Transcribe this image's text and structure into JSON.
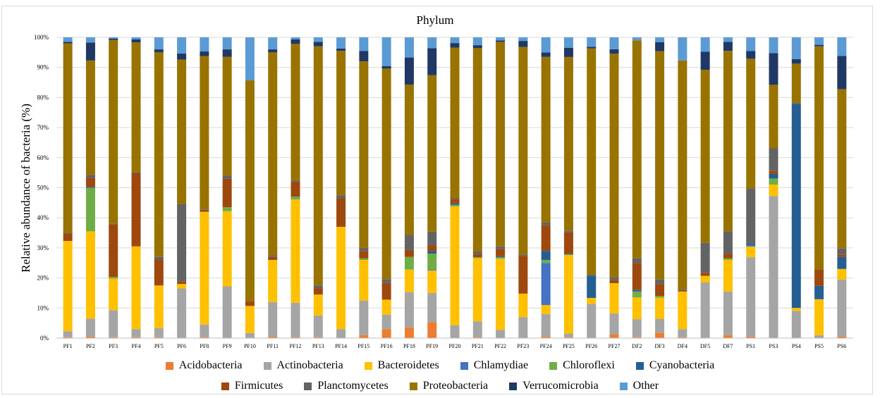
{
  "chart_data": {
    "type": "bar",
    "stacked": true,
    "percent": true,
    "title": "Phylum",
    "xlabel": "",
    "ylabel": "Relative abundance of bacteria (%)",
    "ylim": [
      0,
      100
    ],
    "yticks": [
      "0%",
      "10%",
      "20%",
      "30%",
      "40%",
      "50%",
      "60%",
      "70%",
      "80%",
      "90%",
      "100%"
    ],
    "grid": true,
    "legend_position": "bottom",
    "categories": [
      "PF1",
      "PF2",
      "PF3",
      "PF4",
      "PF5",
      "PF6",
      "PF8",
      "PF9",
      "PF10",
      "PF11",
      "PF12",
      "PF13",
      "PF14",
      "PF15",
      "PF16",
      "PF18",
      "PF19",
      "PF20",
      "PF21",
      "PF22",
      "PF23",
      "PF24",
      "PF25",
      "PF26",
      "PF27",
      "DF2",
      "DF3",
      "DF4",
      "DF5",
      "DF7",
      "PS1",
      "PS3",
      "PS4",
      "PS5",
      "PS6"
    ],
    "series": [
      {
        "name": "Acidobacteria",
        "color": "#ed7d31",
        "values": [
          0.3,
          0.5,
          0.3,
          0.3,
          0.3,
          0.0,
          0.3,
          0.0,
          0.0,
          0.5,
          0.3,
          0.3,
          0.0,
          1.0,
          3.0,
          3.5,
          5.3,
          0.0,
          0.3,
          0.0,
          0.0,
          0.5,
          0.3,
          0.0,
          1.3,
          0.3,
          1.8,
          0.3,
          0.0,
          1.0,
          0.5,
          0.0,
          0.0,
          0.0,
          0.5
        ]
      },
      {
        "name": "Actinobacteria",
        "color": "#a5a5a5",
        "values": [
          2.0,
          6.0,
          9.0,
          2.7,
          3.0,
          16.5,
          4.2,
          17.2,
          1.7,
          11.5,
          11.5,
          7.2,
          3.0,
          11.5,
          4.8,
          11.8,
          9.7,
          4.3,
          5.3,
          2.7,
          7.0,
          7.5,
          1.2,
          11.5,
          6.8,
          6.0,
          4.6,
          2.7,
          18.5,
          14.5,
          26.0,
          47.0,
          9.0,
          1.0,
          19.0
        ]
      },
      {
        "name": "Bacteroidetes",
        "color": "#ffc000",
        "values": [
          30.0,
          29.0,
          10.5,
          27.5,
          14.2,
          1.5,
          37.5,
          25.0,
          9.0,
          14.0,
          34.5,
          7.0,
          34.0,
          13.5,
          5.0,
          7.5,
          7.5,
          39.5,
          21.0,
          23.7,
          7.8,
          3.0,
          26.0,
          2.0,
          10.0,
          7.2,
          7.0,
          12.5,
          2.2,
          10.5,
          3.5,
          3.8,
          1.0,
          12.0,
          3.5
        ]
      },
      {
        "name": "Chlamydiae",
        "color": "#4472c4",
        "values": [
          0.0,
          0.0,
          0.0,
          0.0,
          0.0,
          0.0,
          0.0,
          0.0,
          0.0,
          0.0,
          0.0,
          0.0,
          0.0,
          0.0,
          0.0,
          0.0,
          0.3,
          0.0,
          0.0,
          0.0,
          0.0,
          14.0,
          0.0,
          0.0,
          0.0,
          0.0,
          0.0,
          0.0,
          0.0,
          0.0,
          0.5,
          0.0,
          0.0,
          0.0,
          0.0
        ]
      },
      {
        "name": "Chloroflexi",
        "color": "#70ad47",
        "values": [
          0.0,
          14.5,
          0.5,
          0.0,
          0.0,
          0.0,
          0.0,
          1.3,
          0.0,
          0.0,
          1.0,
          0.0,
          0.0,
          0.5,
          0.0,
          4.2,
          5.3,
          0.5,
          0.3,
          0.5,
          0.0,
          1.0,
          0.2,
          0.0,
          0.0,
          2.0,
          0.5,
          0.0,
          0.0,
          0.5,
          0.0,
          2.0,
          0.0,
          0.0,
          0.0
        ]
      },
      {
        "name": "Cyanobacteria",
        "color": "#255e91",
        "values": [
          0.0,
          0.3,
          0.0,
          0.0,
          0.0,
          0.0,
          0.0,
          0.0,
          0.0,
          0.0,
          0.0,
          0.0,
          0.0,
          0.0,
          0.0,
          0.0,
          0.8,
          0.5,
          0.0,
          0.3,
          0.0,
          3.0,
          0.3,
          7.5,
          0.0,
          0.5,
          0.0,
          0.0,
          0.0,
          0.0,
          0.5,
          1.5,
          67.5,
          4.5,
          4.0
        ]
      },
      {
        "name": "Firmicutes",
        "color": "#9e480e",
        "values": [
          2.5,
          3.0,
          17.5,
          24.5,
          8.5,
          0.8,
          0.5,
          9.5,
          1.5,
          1.0,
          5.0,
          2.0,
          9.5,
          2.5,
          5.5,
          2.3,
          2.0,
          1.5,
          1.0,
          2.5,
          12.5,
          8.5,
          7.0,
          0.0,
          1.0,
          9.0,
          4.0,
          0.5,
          1.0,
          1.5,
          0.0,
          1.0,
          0.0,
          5.5,
          0.8
        ]
      },
      {
        "name": "Planctomycetes",
        "color": "#636363",
        "values": [
          0.2,
          1.0,
          0.3,
          0.3,
          1.0,
          25.8,
          0.3,
          1.0,
          0.0,
          0.5,
          0.5,
          1.0,
          1.0,
          1.0,
          1.3,
          5.0,
          4.5,
          0.3,
          1.0,
          0.8,
          0.5,
          1.0,
          0.5,
          0.3,
          1.0,
          1.5,
          1.5,
          0.3,
          10.0,
          7.5,
          18.0,
          7.5,
          0.3,
          0.0,
          2.0
        ]
      },
      {
        "name": "Proteobacteria",
        "color": "#997300",
        "values": [
          63.0,
          38.0,
          61.0,
          43.0,
          68.0,
          48.0,
          51.0,
          39.5,
          73.5,
          67.5,
          45.5,
          79.5,
          48.0,
          62.0,
          70.0,
          50.0,
          52.0,
          50.0,
          67.5,
          68.0,
          69.0,
          55.0,
          57.5,
          76.0,
          73.5,
          72.5,
          75.5,
          76.0,
          57.5,
          60.0,
          42.5,
          21.0,
          13.0,
          74.5,
          53.0
        ]
      },
      {
        "name": "Verrucomicrobia",
        "color": "#203864",
        "values": [
          0.5,
          6.0,
          0.5,
          1.0,
          1.0,
          2.0,
          1.5,
          2.5,
          0.0,
          1.0,
          1.5,
          1.5,
          0.8,
          3.5,
          0.8,
          9.0,
          9.0,
          1.5,
          1.0,
          0.5,
          2.0,
          1.5,
          3.0,
          0.5,
          1.5,
          0.0,
          3.0,
          0.0,
          6.0,
          3.0,
          2.5,
          10.5,
          1.5,
          0.5,
          11.0
        ]
      },
      {
        "name": "Other",
        "color": "#5b9bd5",
        "values": [
          1.5,
          1.7,
          0.4,
          0.7,
          4.0,
          5.4,
          4.7,
          4.0,
          14.3,
          4.0,
          0.7,
          1.5,
          3.7,
          4.5,
          9.6,
          6.7,
          3.6,
          1.9,
          2.6,
          1.0,
          1.2,
          5.0,
          3.5,
          3.2,
          3.9,
          1.0,
          1.6,
          7.7,
          4.8,
          1.5,
          4.5,
          5.2,
          7.2,
          2.5,
          6.2
        ]
      }
    ]
  }
}
